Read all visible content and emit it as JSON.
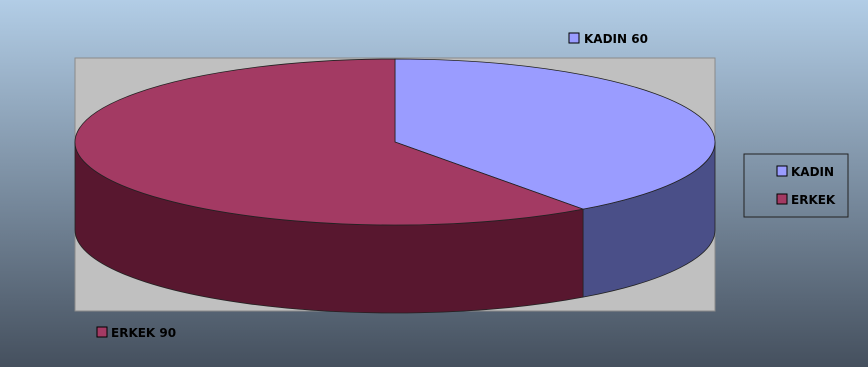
{
  "chart_data": {
    "type": "pie",
    "style": "3d",
    "categories": [
      "KADIN",
      "ERKEK"
    ],
    "values": [
      60,
      90
    ],
    "colors": [
      "#9a9cff",
      "#a33a63"
    ],
    "side_colors": [
      "#4a4f88",
      "#58172f"
    ],
    "data_labels": [
      "KADIN 60",
      "ERKEK 90"
    ],
    "legend": {
      "position": "right",
      "entries": [
        "KADIN",
        "ERKEK"
      ]
    },
    "background": {
      "gradient_top": "#b2cde6",
      "gradient_bottom": "#45505e",
      "plot_area": "#c0c0c0"
    }
  }
}
